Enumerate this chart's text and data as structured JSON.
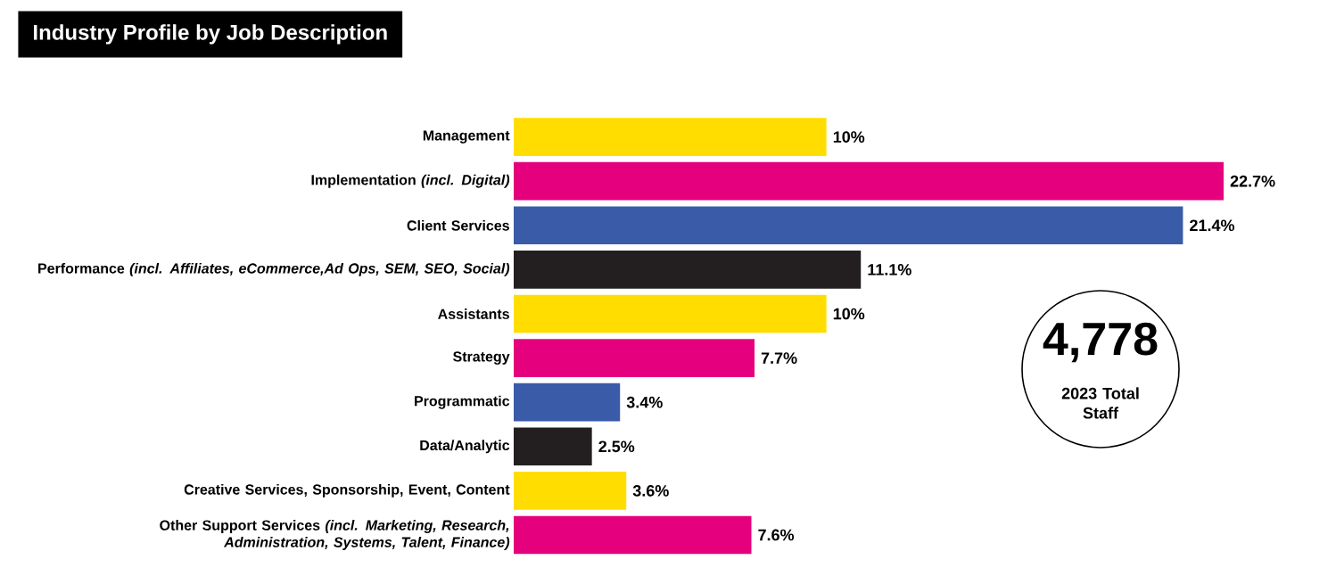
{
  "chart_data": {
    "type": "bar",
    "orientation": "horizontal",
    "title": "Industry Profile by Job Description",
    "categories": [
      "Management",
      "Implementation *(incl. Digital)*",
      "Client Services",
      "Performance *(incl. Affiliates, eCommerce,Ad Ops, SEM, SEO, Social)*",
      "Assistants",
      "Strategy",
      "Programmatic",
      "Data/Analytic",
      "Creative Services, Sponsorship, Event, Content",
      "Other Support Services *(incl. Marketing, Research, Administration, Systems, Talent, Finance)*"
    ],
    "values": [
      10,
      22.7,
      21.4,
      11.1,
      10,
      7.7,
      3.4,
      2.5,
      3.6,
      7.6
    ],
    "value_labels": [
      "10%",
      "22.7%",
      "21.4%",
      "11.1%",
      "10%",
      "7.7%",
      "3.4%",
      "2.5%",
      "3.6%",
      "7.6%"
    ],
    "colors": [
      "#ffdd00",
      "#e5007e",
      "#3a5ba8",
      "#231f20",
      "#ffdd00",
      "#e5007e",
      "#3a5ba8",
      "#231f20",
      "#ffdd00",
      "#e5007e"
    ],
    "annotations": [
      "4,778",
      "2023 Total Staff"
    ]
  }
}
